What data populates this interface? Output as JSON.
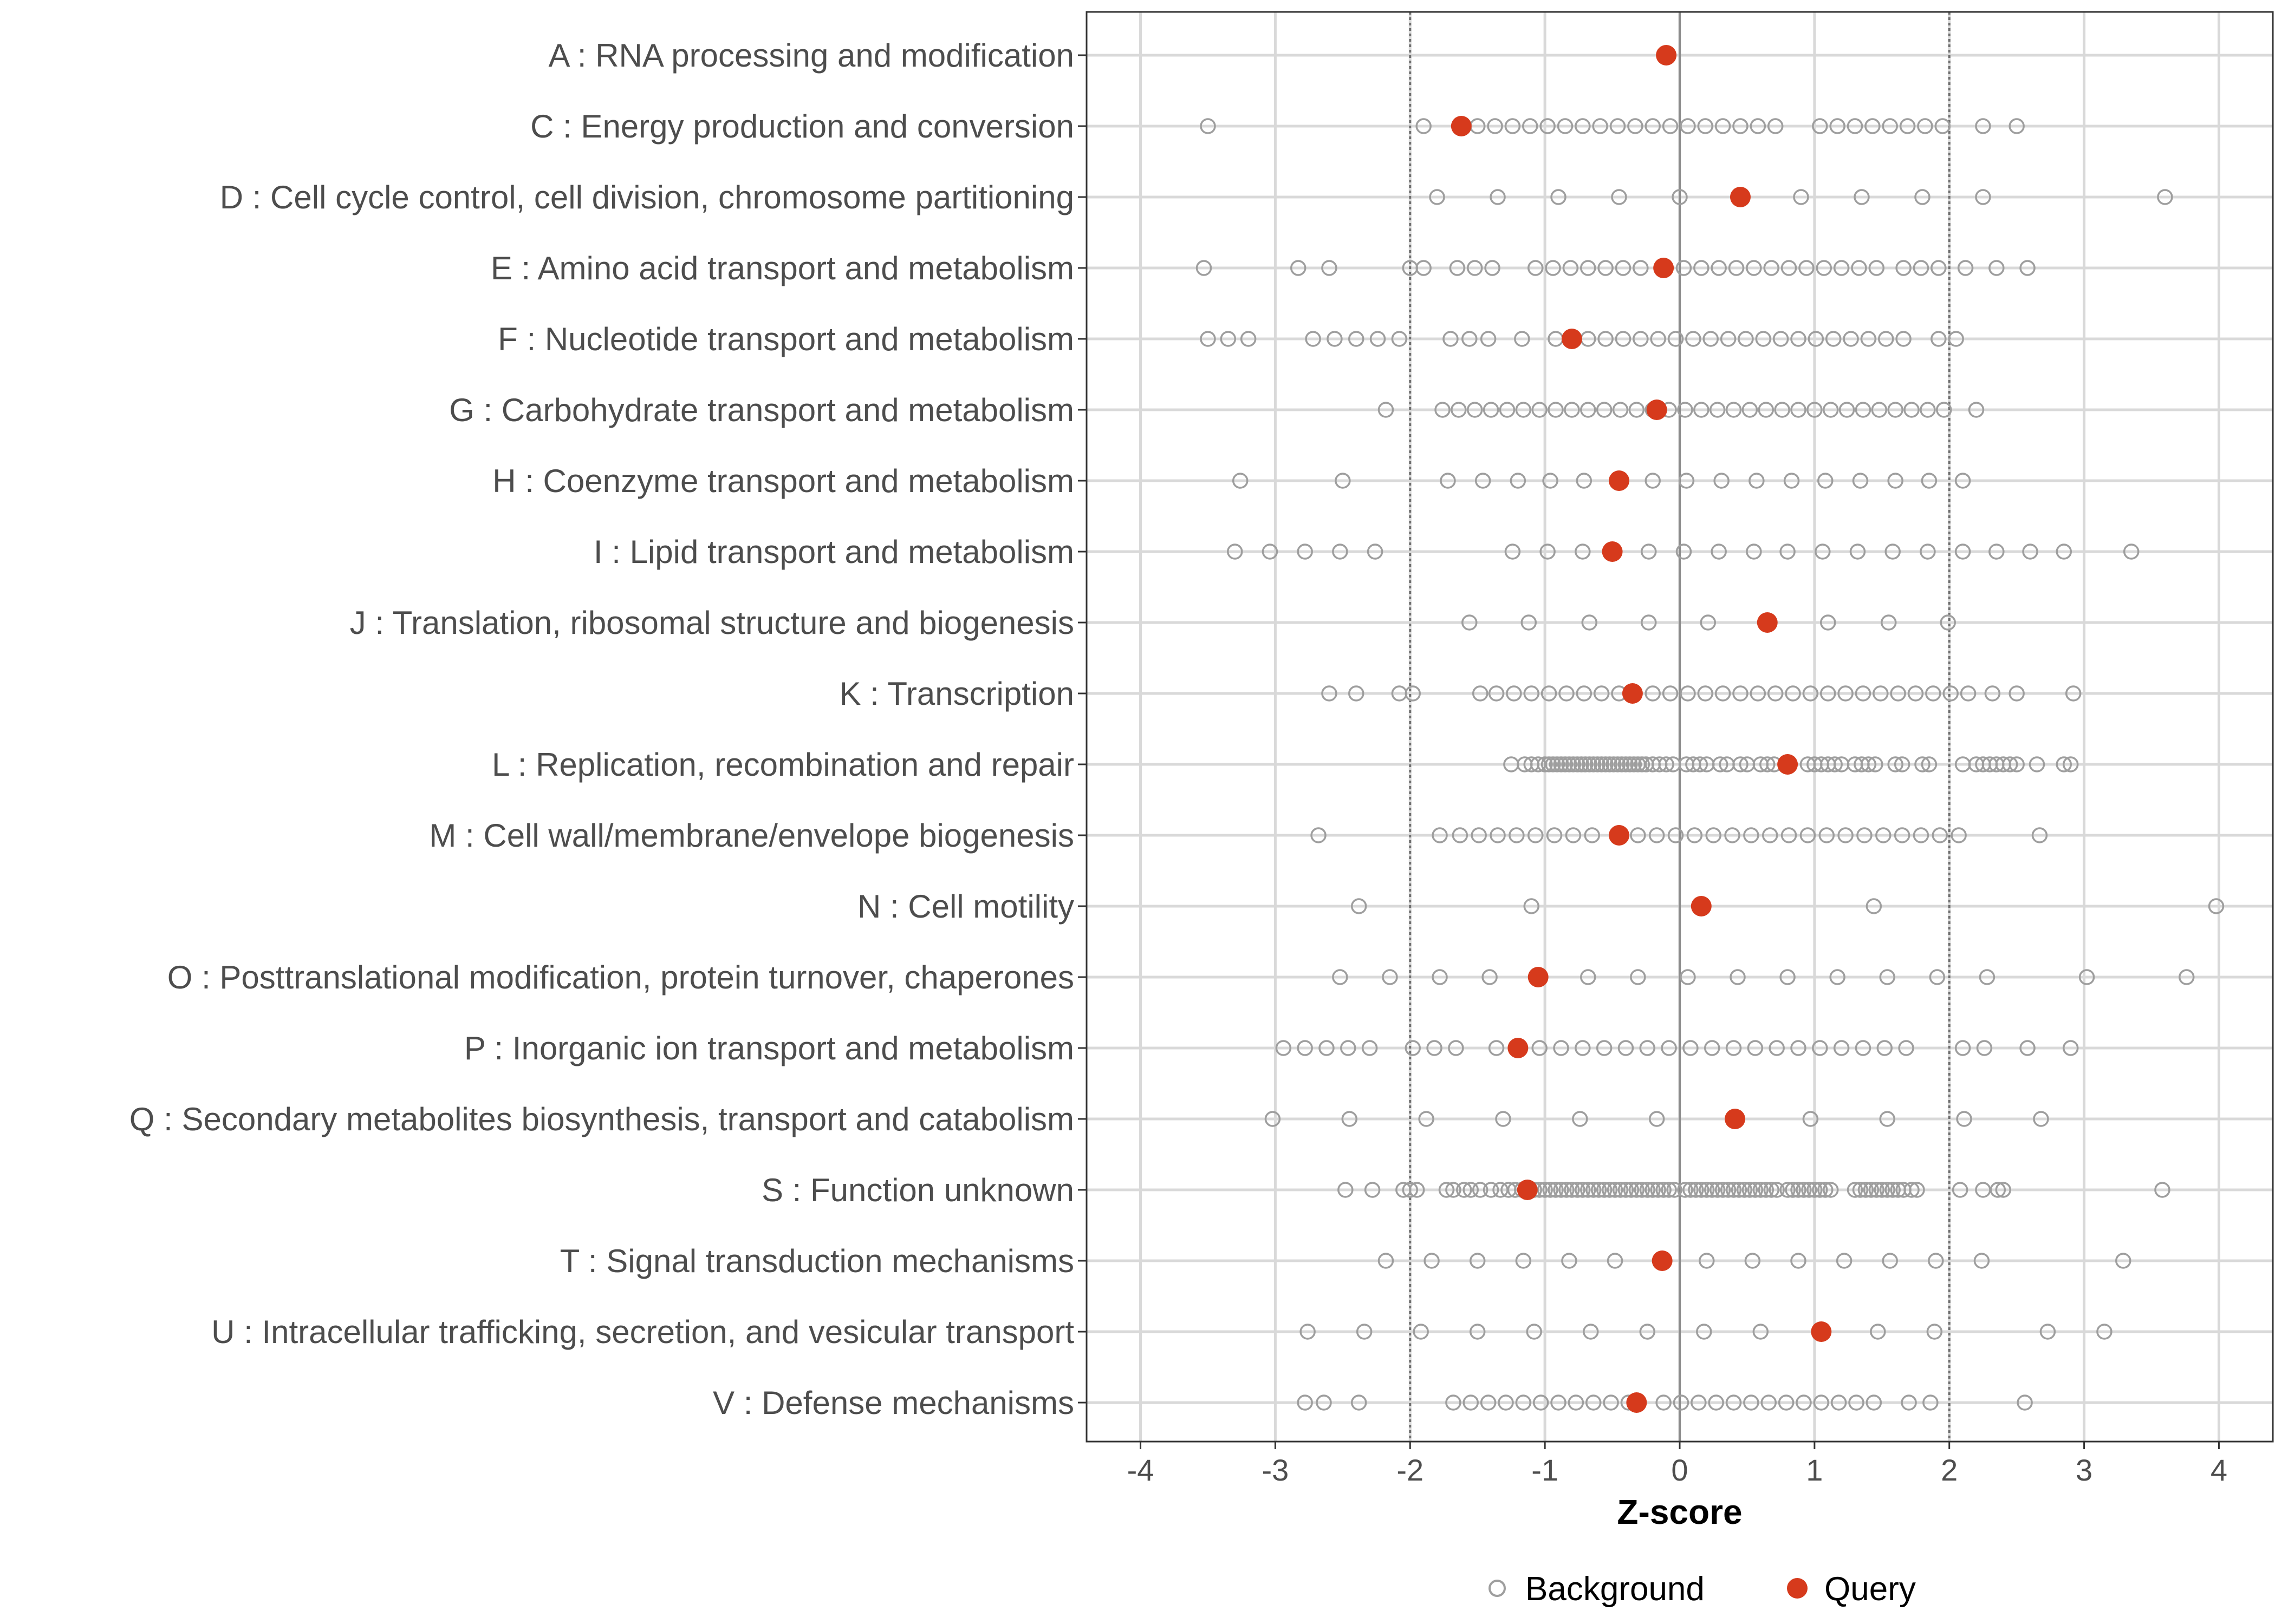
{
  "chart_data": {
    "type": "scatter",
    "xlabel": "Z-score",
    "ylabel": "",
    "xlim": [
      -4.4,
      4.4
    ],
    "xticks": [
      -4,
      -3,
      -2,
      -1,
      0,
      1,
      2,
      3,
      4
    ],
    "xtick_labels": [
      "-4",
      "-3",
      "-2",
      "-1",
      "0",
      "1",
      "2",
      "3",
      "4"
    ],
    "reference_lines": [
      -2,
      0,
      2
    ],
    "grid": true,
    "legend": {
      "position": "bottom",
      "entries": [
        "Background",
        "Query"
      ]
    },
    "colors": {
      "background": "#9e9e9e",
      "query": "#d63a1c",
      "grid": "#d9d9d9",
      "ref_line": "#707070",
      "zero_line": "#8c8c8c"
    },
    "categories": [
      "A : RNA processing and modification",
      "C : Energy production and conversion",
      "D : Cell cycle control, cell division, chromosome partitioning",
      "E : Amino acid transport and metabolism",
      "F : Nucleotide transport and metabolism",
      "G : Carbohydrate transport and metabolism",
      "H : Coenzyme transport and metabolism",
      "I : Lipid transport and metabolism",
      "J : Translation, ribosomal structure and biogenesis",
      "K : Transcription",
      "L : Replication, recombination and repair",
      "M : Cell wall/membrane/envelope biogenesis",
      "N : Cell motility",
      "O : Posttranslational modification, protein turnover, chaperones",
      "P : Inorganic ion transport and metabolism",
      "Q : Secondary metabolites biosynthesis, transport and catabolism",
      "S : Function unknown",
      "T : Signal transduction mechanisms",
      "U : Intracellular trafficking, secretion, and vesicular transport",
      "V : Defense mechanisms"
    ],
    "series": [
      {
        "name": "Query",
        "values": [
          -0.1,
          -1.62,
          0.45,
          -0.12,
          -0.8,
          -0.17,
          -0.45,
          -0.5,
          0.65,
          -0.35,
          0.8,
          -0.45,
          0.16,
          -1.05,
          -1.2,
          0.41,
          -1.13,
          -0.13,
          1.05,
          -0.32
        ]
      },
      {
        "name": "Background",
        "values": [
          [],
          [
            -3.5,
            -1.9,
            -1.5,
            -1.37,
            -1.24,
            -1.11,
            -0.98,
            -0.85,
            -0.72,
            -0.59,
            -0.46,
            -0.33,
            -0.2,
            -0.07,
            0.06,
            0.19,
            0.32,
            0.45,
            0.58,
            0.71,
            1.04,
            1.17,
            1.3,
            1.43,
            1.56,
            1.69,
            1.82,
            1.95,
            2.25,
            2.5
          ],
          [
            -1.8,
            -1.35,
            -0.9,
            -0.45,
            0.0,
            0.9,
            1.35,
            1.8,
            2.25,
            3.6
          ],
          [
            -3.53,
            -2.83,
            -2.6,
            -2.0,
            -1.9,
            -1.65,
            -1.52,
            -1.39,
            -1.07,
            -0.94,
            -0.81,
            -0.68,
            -0.55,
            -0.42,
            -0.29,
            0.03,
            0.16,
            0.29,
            0.42,
            0.55,
            0.68,
            0.81,
            0.94,
            1.07,
            1.2,
            1.33,
            1.46,
            1.66,
            1.79,
            1.92,
            2.12,
            2.35,
            2.58
          ],
          [
            -3.5,
            -3.35,
            -3.2,
            -2.72,
            -2.56,
            -2.4,
            -2.24,
            -2.08,
            -1.7,
            -1.56,
            -1.42,
            -1.17,
            -0.92,
            -0.68,
            -0.55,
            -0.42,
            -0.29,
            -0.16,
            -0.03,
            0.1,
            0.23,
            0.36,
            0.49,
            0.62,
            0.75,
            0.88,
            1.01,
            1.14,
            1.27,
            1.4,
            1.53,
            1.66,
            1.92,
            2.05
          ],
          [
            -2.18,
            -1.76,
            -1.64,
            -1.52,
            -1.4,
            -1.28,
            -1.16,
            -1.04,
            -0.92,
            -0.8,
            -0.68,
            -0.56,
            -0.44,
            -0.32,
            -0.2,
            -0.08,
            0.04,
            0.16,
            0.28,
            0.4,
            0.52,
            0.64,
            0.76,
            0.88,
            1.0,
            1.12,
            1.24,
            1.36,
            1.48,
            1.6,
            1.72,
            1.84,
            1.96,
            2.2
          ],
          [
            -3.26,
            -2.5,
            -1.72,
            -1.46,
            -1.2,
            -0.96,
            -0.71,
            -0.2,
            0.05,
            0.31,
            0.57,
            0.83,
            1.08,
            1.34,
            1.6,
            1.85,
            2.1
          ],
          [
            -3.3,
            -3.04,
            -2.78,
            -2.52,
            -2.26,
            -1.24,
            -0.98,
            -0.72,
            -0.23,
            0.03,
            0.29,
            0.55,
            0.8,
            1.06,
            1.32,
            1.58,
            1.84,
            2.1,
            2.35,
            2.6,
            2.85,
            3.35
          ],
          [
            -1.56,
            -1.12,
            -0.67,
            -0.23,
            0.21,
            1.1,
            1.55,
            1.99
          ],
          [
            -2.6,
            -2.4,
            -2.08,
            -1.98,
            -1.48,
            -1.36,
            -1.23,
            -1.1,
            -0.97,
            -0.84,
            -0.71,
            -0.58,
            -0.45,
            -0.2,
            -0.07,
            0.06,
            0.19,
            0.32,
            0.45,
            0.58,
            0.71,
            0.84,
            0.97,
            1.1,
            1.23,
            1.36,
            1.49,
            1.62,
            1.75,
            1.88,
            2.01,
            2.14,
            2.32,
            2.5,
            2.92
          ],
          [
            -1.25,
            -1.15,
            -1.1,
            -1.05,
            -1.0,
            -0.97,
            -0.94,
            -0.91,
            -0.88,
            -0.85,
            -0.82,
            -0.79,
            -0.76,
            -0.73,
            -0.7,
            -0.67,
            -0.64,
            -0.61,
            -0.58,
            -0.55,
            -0.52,
            -0.49,
            -0.46,
            -0.43,
            -0.4,
            -0.37,
            -0.34,
            -0.31,
            -0.28,
            -0.25,
            -0.2,
            -0.15,
            -0.1,
            -0.05,
            0.05,
            0.1,
            0.15,
            0.2,
            0.3,
            0.35,
            0.45,
            0.5,
            0.6,
            0.65,
            0.7,
            0.95,
            1.0,
            1.05,
            1.1,
            1.15,
            1.2,
            1.3,
            1.35,
            1.4,
            1.45,
            1.6,
            1.65,
            1.8,
            1.85,
            2.1,
            2.2,
            2.25,
            2.3,
            2.35,
            2.4,
            2.45,
            2.5,
            2.65,
            2.85,
            2.9
          ],
          [
            -2.68,
            -1.78,
            -1.63,
            -1.49,
            -1.35,
            -1.21,
            -1.07,
            -0.93,
            -0.79,
            -0.65,
            -0.31,
            -0.17,
            -0.03,
            0.11,
            0.25,
            0.39,
            0.53,
            0.67,
            0.81,
            0.95,
            1.09,
            1.23,
            1.37,
            1.51,
            1.65,
            1.79,
            1.93,
            2.07,
            2.67
          ],
          [
            -2.38,
            -1.1,
            1.44,
            3.98
          ],
          [
            -2.52,
            -2.15,
            -1.78,
            -1.41,
            -0.68,
            -0.31,
            0.06,
            0.43,
            0.8,
            1.17,
            1.54,
            1.91,
            2.28,
            3.02,
            3.76
          ],
          [
            -2.94,
            -2.78,
            -2.62,
            -2.46,
            -2.3,
            -1.98,
            -1.82,
            -1.66,
            -1.36,
            -1.04,
            -0.88,
            -0.72,
            -0.56,
            -0.4,
            -0.24,
            -0.08,
            0.08,
            0.24,
            0.4,
            0.56,
            0.72,
            0.88,
            1.04,
            1.2,
            1.36,
            1.52,
            1.68,
            2.1,
            2.26,
            2.58,
            2.9
          ],
          [
            -3.02,
            -2.45,
            -1.88,
            -1.31,
            -0.74,
            -0.17,
            0.97,
            1.54,
            2.11,
            2.68
          ],
          [
            -2.48,
            -2.28,
            -2.05,
            -2.0,
            -1.95,
            -1.73,
            -1.68,
            -1.6,
            -1.55,
            -1.48,
            -1.4,
            -1.33,
            -1.27,
            -1.22,
            -1.17,
            -1.08,
            -1.04,
            -1.0,
            -0.96,
            -0.92,
            -0.88,
            -0.84,
            -0.8,
            -0.76,
            -0.72,
            -0.68,
            -0.64,
            -0.6,
            -0.56,
            -0.52,
            -0.48,
            -0.44,
            -0.4,
            -0.36,
            -0.32,
            -0.28,
            -0.24,
            -0.2,
            -0.16,
            -0.12,
            -0.08,
            -0.04,
            0.04,
            0.08,
            0.12,
            0.16,
            0.2,
            0.24,
            0.28,
            0.32,
            0.36,
            0.4,
            0.44,
            0.48,
            0.52,
            0.56,
            0.6,
            0.64,
            0.68,
            0.72,
            0.8,
            0.84,
            0.88,
            0.92,
            0.96,
            1.0,
            1.04,
            1.08,
            1.12,
            1.3,
            1.34,
            1.38,
            1.42,
            1.46,
            1.5,
            1.54,
            1.58,
            1.62,
            1.66,
            1.72,
            1.76,
            2.08,
            2.25,
            2.36,
            2.4,
            3.58
          ],
          [
            -2.18,
            -1.84,
            -1.5,
            -1.16,
            -0.82,
            -0.48,
            0.2,
            0.54,
            0.88,
            1.22,
            1.56,
            1.9,
            2.24,
            3.29
          ],
          [
            -2.76,
            -2.34,
            -1.92,
            -1.5,
            -1.08,
            -0.66,
            -0.24,
            0.18,
            0.6,
            1.47,
            1.89,
            2.73,
            3.15
          ],
          [
            -2.78,
            -2.64,
            -2.38,
            -1.68,
            -1.55,
            -1.42,
            -1.29,
            -1.16,
            -1.03,
            -0.9,
            -0.77,
            -0.64,
            -0.51,
            -0.38,
            -0.12,
            0.01,
            0.14,
            0.27,
            0.4,
            0.53,
            0.66,
            0.79,
            0.92,
            1.05,
            1.18,
            1.31,
            1.44,
            1.7,
            1.86,
            2.56
          ]
        ]
      }
    ]
  }
}
